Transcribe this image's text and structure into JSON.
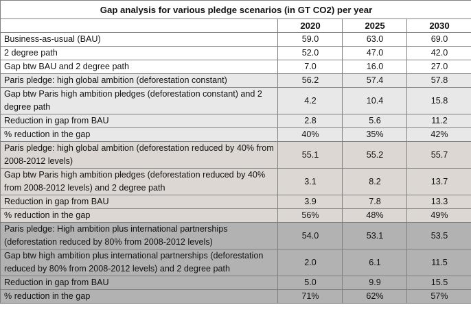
{
  "table": {
    "title": "Gap analysis for various pledge scenarios (in GT CO2) per year",
    "columns": [
      "2020",
      "2025",
      "2030"
    ],
    "rows": [
      {
        "label": "Business-as-usual (BAU)",
        "values": [
          "59.0",
          "63.0",
          "69.0"
        ],
        "shade": "white"
      },
      {
        "label": "2 degree path",
        "values": [
          "52.0",
          "47.0",
          "42.0"
        ],
        "shade": "white"
      },
      {
        "label": "Gap btw BAU and 2 degree path",
        "values": [
          "7.0",
          "16.0",
          "27.0"
        ],
        "shade": "white"
      },
      {
        "label": "Paris pledge: high global ambition (deforestation constant)",
        "values": [
          "56.2",
          "57.4",
          "57.8"
        ],
        "shade": "grey"
      },
      {
        "label": "Gap btw Paris high ambition pledges (deforestation constant) and 2 degree path",
        "values": [
          "4.2",
          "10.4",
          "15.8"
        ],
        "shade": "grey"
      },
      {
        "label": "Reduction in gap from BAU",
        "values": [
          "2.8",
          "5.6",
          "11.2"
        ],
        "shade": "grey"
      },
      {
        "label": "% reduction in the gap",
        "values": [
          "40%",
          "35%",
          "42%"
        ],
        "shade": "grey"
      },
      {
        "label": "Paris pledge: high global ambition (deforestation reduced by 40% from 2008-2012 levels)",
        "values": [
          "55.1",
          "55.2",
          "55.7"
        ],
        "shade": "taupe"
      },
      {
        "label": "Gap btw Paris high ambition pledges (deforestation reduced by 40% from 2008-2012 levels) and 2 degree path",
        "values": [
          "3.1",
          "8.2",
          "13.7"
        ],
        "shade": "taupe"
      },
      {
        "label": "Reduction in gap from BAU",
        "values": [
          "3.9",
          "7.8",
          "13.3"
        ],
        "shade": "taupe"
      },
      {
        "label": "% reduction in the gap",
        "values": [
          "56%",
          "48%",
          "49%"
        ],
        "shade": "taupe"
      },
      {
        "label": "Paris pledge: High ambition plus international partnerships (deforestation reduced by 80% from 2008-2012 levels)",
        "values": [
          "54.0",
          "53.1",
          "53.5"
        ],
        "shade": "dark"
      },
      {
        "label": "Gap btw high ambition plus international partnerships (deforestation reduced by 80% from 2008-2012 levels) and 2 degree path",
        "values": [
          "2.0",
          "6.1",
          "11.5"
        ],
        "shade": "dark"
      },
      {
        "label": "Reduction in gap from BAU",
        "values": [
          "5.0",
          "9.9",
          "15.5"
        ],
        "shade": "dark"
      },
      {
        "label": "% reduction in the gap",
        "values": [
          "71%",
          "62%",
          "57%"
        ],
        "shade": "dark"
      }
    ]
  },
  "colors": {
    "white": "#ffffff",
    "grey": "#e8e8e8",
    "taupe": "#dcd7d2",
    "dark": "#b3b2b3",
    "border": "#7f7f7f"
  }
}
